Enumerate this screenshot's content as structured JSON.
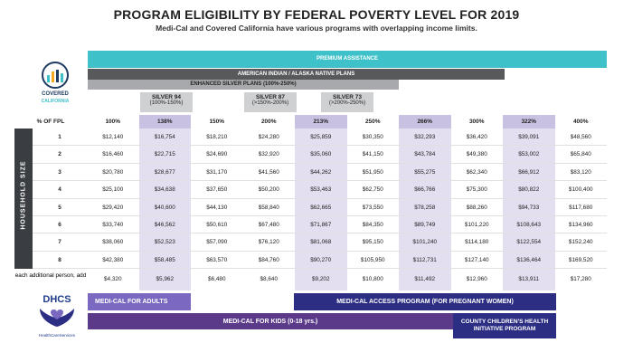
{
  "title": "PROGRAM ELIGIBILITY BY FEDERAL POVERTY LEVEL FOR 2019",
  "subtitle": "Medi-Cal and Covered California have various programs with overlapping income limits.",
  "logo": {
    "covered": "COVERED",
    "california": "CALIFORNIA"
  },
  "bands": {
    "premium": "PREMIUM ASSISTANCE",
    "american_indian": "AMERICAN INDIAN / ALASKA NATIVE PLANS",
    "enhanced_silver": "ENHANCED SILVER PLANS (100%-250%)"
  },
  "silver_plans": [
    {
      "name": "SILVER 94",
      "range": "(100%-150%)"
    },
    {
      "name": "SILVER 87",
      "range": "(>150%-200%)"
    },
    {
      "name": "SILVER 73",
      "range": "(>200%-250%)"
    }
  ],
  "table": {
    "header_label": "% OF FPL",
    "side_label": "HOUSEHOLD SIZE",
    "columns": [
      "100%",
      "138%",
      "150%",
      "200%",
      "213%",
      "250%",
      "266%",
      "300%",
      "322%",
      "400%"
    ],
    "rows": [
      {
        "size": "1",
        "values": [
          "$12,140",
          "$16,754",
          "$18,210",
          "$24,280",
          "$25,859",
          "$30,350",
          "$32,293",
          "$36,420",
          "$39,091",
          "$48,560"
        ]
      },
      {
        "size": "2",
        "values": [
          "$16,460",
          "$22,715",
          "$24,690",
          "$32,920",
          "$35,060",
          "$41,150",
          "$43,784",
          "$49,380",
          "$53,002",
          "$65,840"
        ]
      },
      {
        "size": "3",
        "values": [
          "$20,780",
          "$28,677",
          "$31,170",
          "$41,560",
          "$44,262",
          "$51,950",
          "$55,275",
          "$62,340",
          "$66,912",
          "$83,120"
        ]
      },
      {
        "size": "4",
        "values": [
          "$25,100",
          "$34,638",
          "$37,650",
          "$50,200",
          "$53,463",
          "$62,750",
          "$66,766",
          "$75,300",
          "$80,822",
          "$100,400"
        ]
      },
      {
        "size": "5",
        "values": [
          "$29,420",
          "$40,600",
          "$44,130",
          "$58,840",
          "$62,665",
          "$73,550",
          "$78,258",
          "$88,260",
          "$94,733",
          "$117,680"
        ]
      },
      {
        "size": "6",
        "values": [
          "$33,740",
          "$46,562",
          "$50,610",
          "$67,480",
          "$71,867",
          "$84,350",
          "$89,749",
          "$101,220",
          "$108,643",
          "$134,960"
        ]
      },
      {
        "size": "7",
        "values": [
          "$38,060",
          "$52,523",
          "$57,090",
          "$76,120",
          "$81,068",
          "$95,150",
          "$101,240",
          "$114,180",
          "$122,554",
          "$152,240"
        ]
      },
      {
        "size": "8",
        "values": [
          "$42,380",
          "$58,485",
          "$63,570",
          "$84,760",
          "$90,270",
          "$105,950",
          "$112,731",
          "$127,140",
          "$136,464",
          "$169,520"
        ]
      }
    ],
    "additional_label": "each additional person, add",
    "additional_values": [
      "$4,320",
      "$5,962",
      "$6,480",
      "$8,640",
      "$9,202",
      "$10,800",
      "$11,492",
      "$12,960",
      "$13,911",
      "$17,280"
    ]
  },
  "dhcs": {
    "name": "DHCS",
    "tagline": "HealthCareServices"
  },
  "programs": {
    "medi_cal_adults": "MEDI-CAL FOR ADULTS",
    "access_program": "MEDI-CAL ACCESS PROGRAM (FOR PREGNANT WOMEN)",
    "kids": "MEDI-CAL FOR KIDS (0-18 yrs.)",
    "cchi": "COUNTY CHILDREN'S HEALTH INITIATIVE PROGRAM"
  },
  "colors": {
    "teal": "#3fc1c9",
    "purple_light": "#7b68c0",
    "navy": "#2b2e83",
    "purple_dark": "#5b3a8a",
    "highlight": "#c9c1e2"
  }
}
